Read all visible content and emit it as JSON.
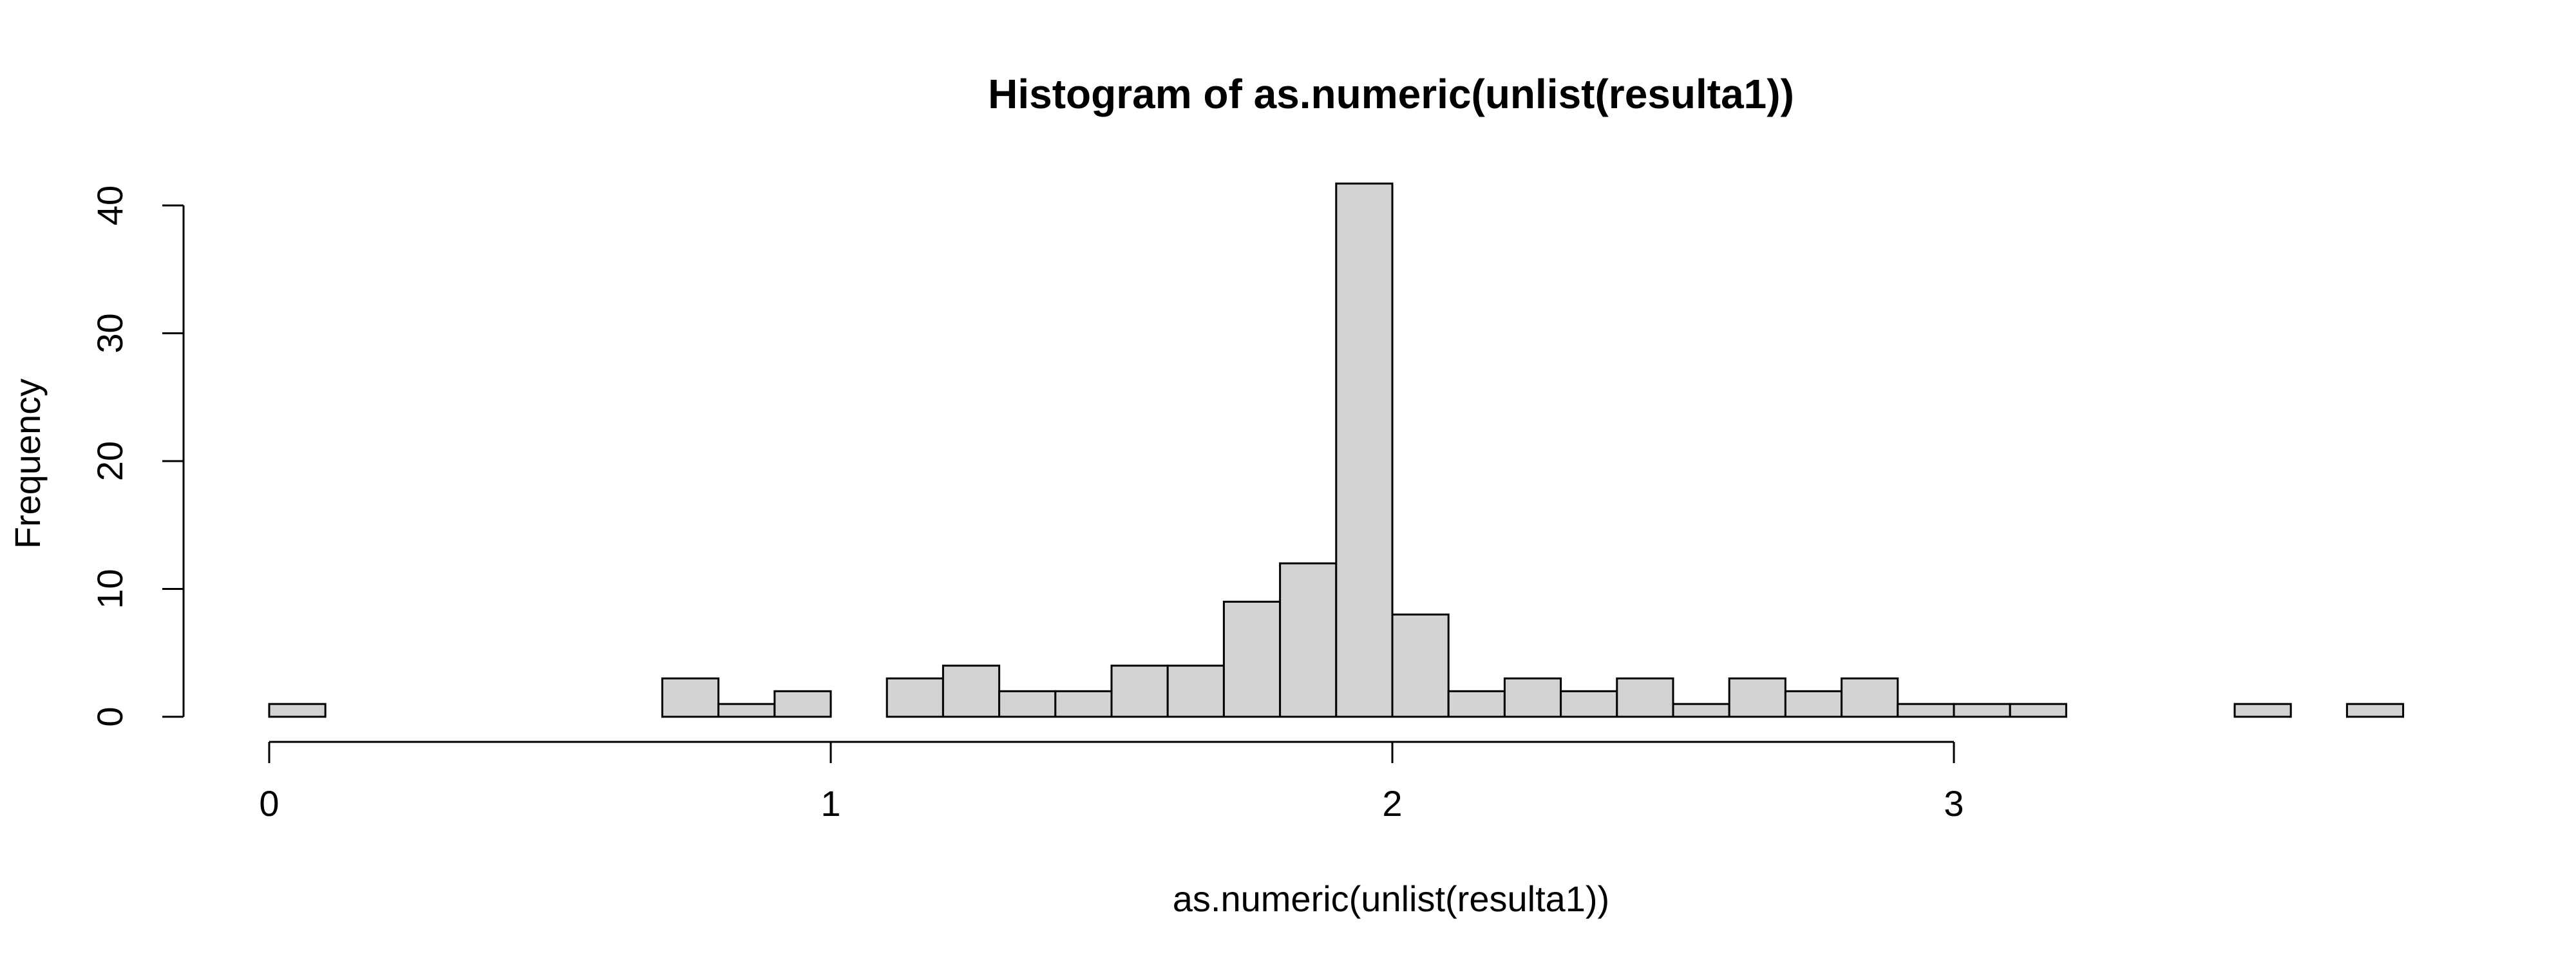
{
  "chart_data": {
    "type": "bar",
    "title": "Histogram of as.numeric(unlist(resulta1))",
    "xlabel": "as.numeric(unlist(resulta1))",
    "ylabel": "Frequency",
    "bin_width": 0.1,
    "bin_starts": [
      0.0,
      0.7,
      0.8,
      0.9,
      1.1,
      1.2,
      1.3,
      1.4,
      1.5,
      1.6,
      1.7,
      1.8,
      1.9,
      2.0,
      2.1,
      2.2,
      2.3,
      2.4,
      2.5,
      2.6,
      2.7,
      2.8,
      2.9,
      3.0,
      3.1,
      3.5,
      3.7
    ],
    "values": [
      1,
      3,
      1,
      2,
      3,
      4,
      2,
      2,
      4,
      4,
      9,
      12,
      42,
      8,
      2,
      3,
      2,
      3,
      1,
      3,
      2,
      3,
      1,
      1,
      1,
      1,
      1
    ],
    "xlim": [
      0,
      3.8
    ],
    "ylim": [
      0,
      40
    ],
    "x_ticks": [
      0,
      1,
      2,
      3
    ],
    "x_tick_labels": [
      "0",
      "1",
      "2",
      "3"
    ],
    "y_ticks": [
      0,
      10,
      20,
      30,
      40
    ],
    "y_tick_labels": [
      "0",
      "10",
      "20",
      "30",
      "40"
    ],
    "bar_color": "#d3d3d3",
    "grid": false
  }
}
